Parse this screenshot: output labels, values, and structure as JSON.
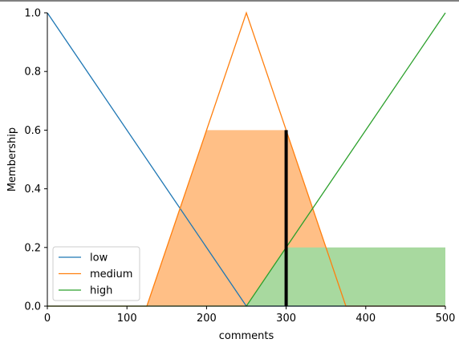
{
  "chart_data": {
    "type": "line",
    "xlabel": "comments",
    "ylabel": "Membership",
    "xlim": [
      0,
      500
    ],
    "ylim": [
      0,
      1.0
    ],
    "xticks": [
      "0",
      "100",
      "200",
      "300",
      "400",
      "500"
    ],
    "yticks": [
      "0.0",
      "0.2",
      "0.4",
      "0.6",
      "0.8",
      "1.0"
    ],
    "grid": false,
    "legend_position": "lower-left",
    "series": [
      {
        "name": "low",
        "color": "#1f77b4",
        "x": [
          0,
          250,
          500
        ],
        "y": [
          1.0,
          0.0,
          0.0
        ]
      },
      {
        "name": "medium",
        "color": "#ff7f0e",
        "x": [
          0,
          125,
          250,
          375,
          500
        ],
        "y": [
          0.0,
          0.0,
          1.0,
          0.0,
          0.0
        ]
      },
      {
        "name": "high",
        "color": "#2ca02c",
        "x": [
          0,
          250,
          500
        ],
        "y": [
          0.0,
          0.0,
          1.0
        ]
      }
    ],
    "filled_regions": [
      {
        "series": "medium",
        "color": "#ffbf86",
        "x": [
          125,
          200,
          300,
          375
        ],
        "y": [
          0.0,
          0.6,
          0.6,
          0.0
        ]
      },
      {
        "series": "high",
        "color": "#a8d99f",
        "x": [
          250,
          300,
          300,
          500,
          500
        ],
        "y": [
          0.0,
          0.2,
          0.2,
          0.2,
          0.0
        ]
      }
    ],
    "marker": {
      "x": 300,
      "y": 0.6,
      "color": "#000000"
    }
  }
}
